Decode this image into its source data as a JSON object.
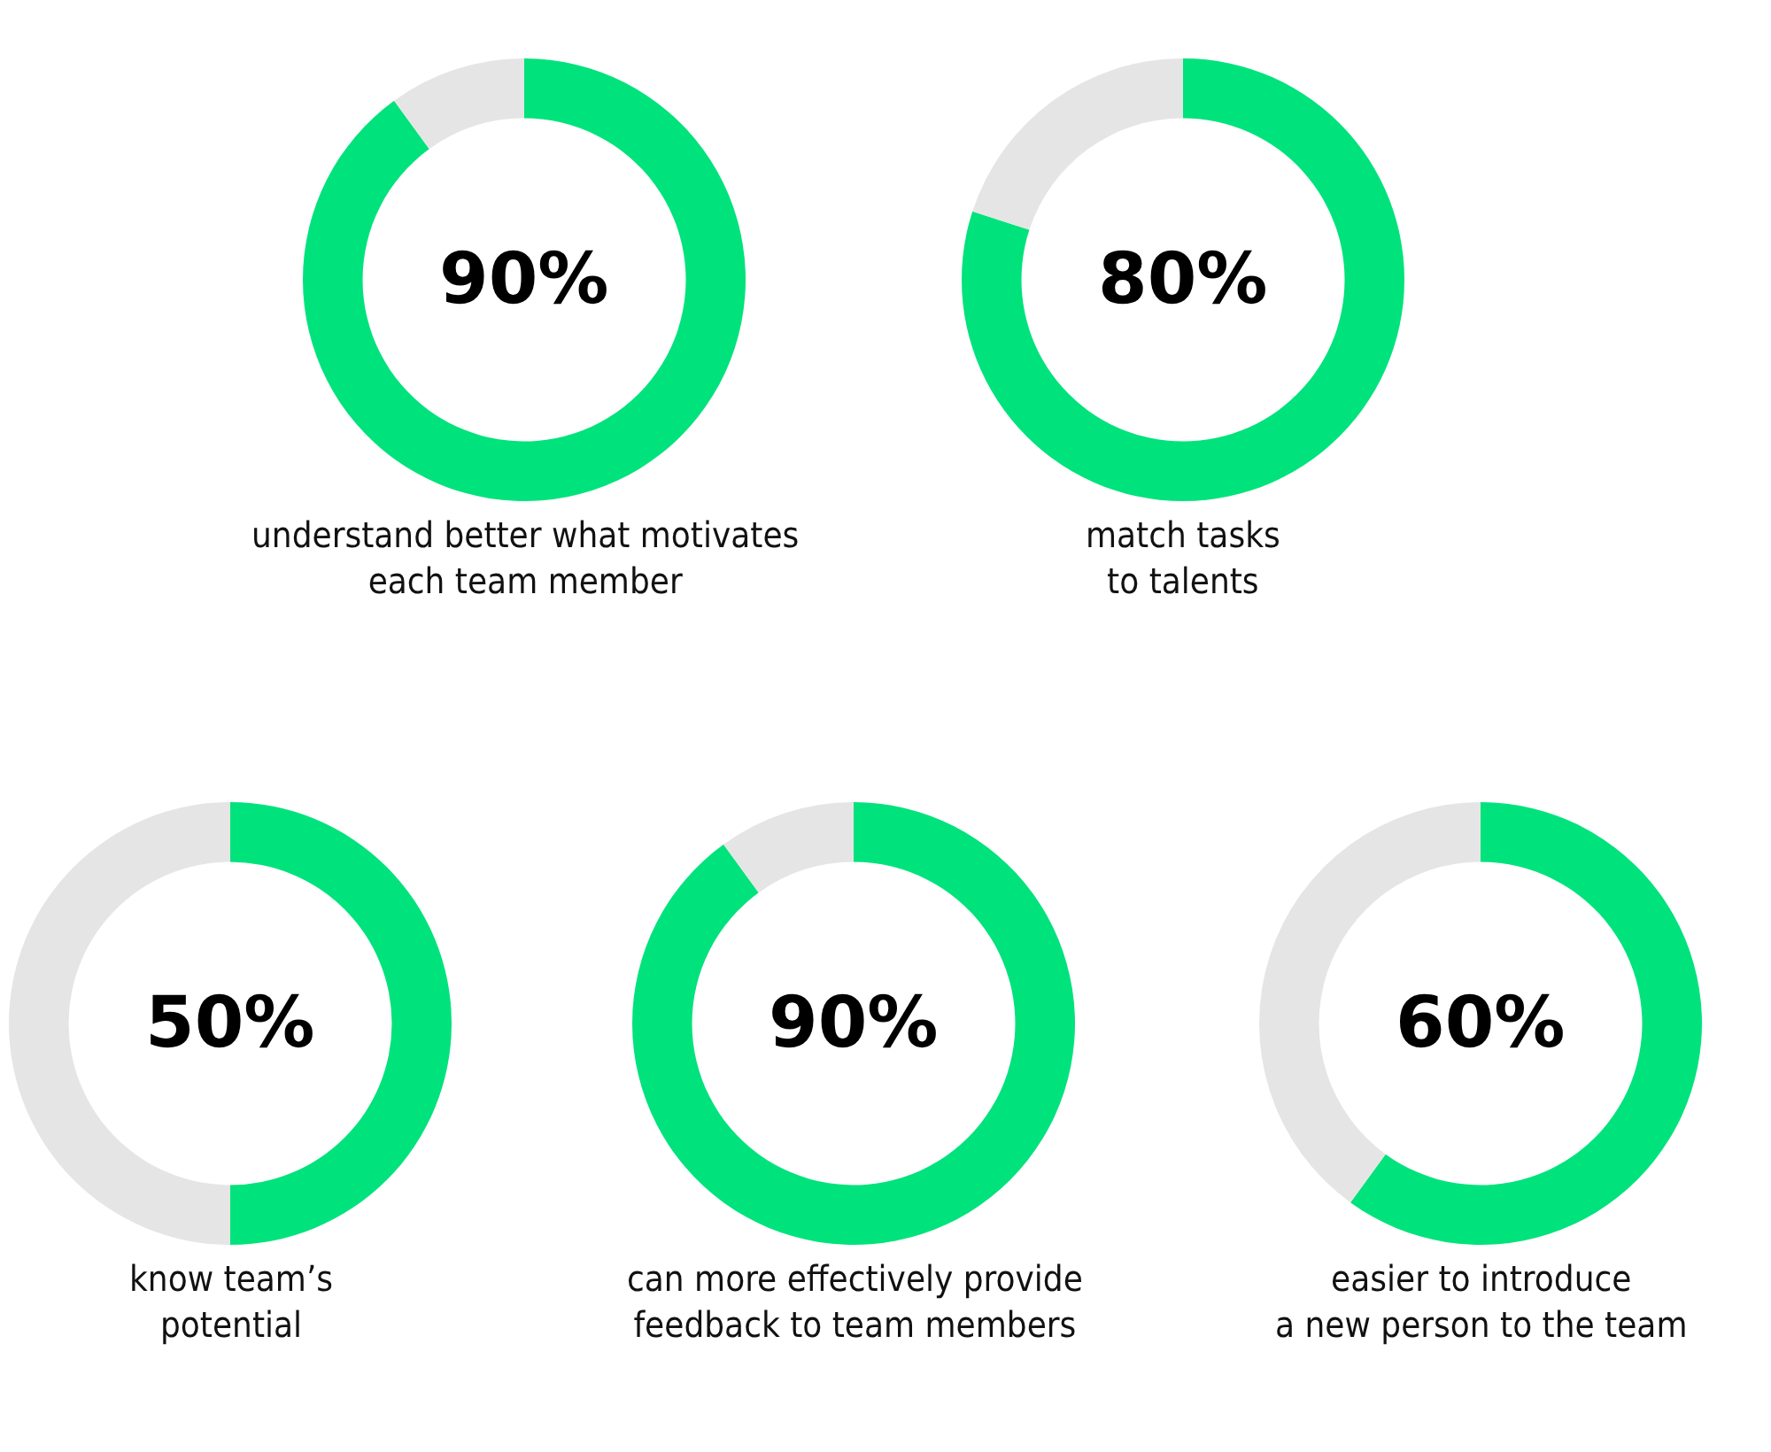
{
  "chart_data": [
    {
      "type": "donut",
      "title": "understand better what motivates\neach team member",
      "categories": [
        null,
        null
      ],
      "values": [
        90,
        10
      ],
      "colors": [
        "#00e27c",
        "#e5e5e5"
      ],
      "annotations": [
        "90%"
      ]
    },
    {
      "type": "donut",
      "title": "match tasks\nto talents",
      "categories": [
        null,
        null
      ],
      "values": [
        80,
        20
      ],
      "colors": [
        "#00e27c",
        "#e5e5e5"
      ],
      "annotations": [
        "80%"
      ]
    },
    {
      "type": "donut",
      "title": "know team’s\npotential",
      "categories": [
        null,
        null
      ],
      "values": [
        50,
        50
      ],
      "colors": [
        "#00e27c",
        "#e5e5e5"
      ],
      "annotations": [
        "50%"
      ]
    },
    {
      "type": "donut",
      "title": "can more effectively provide\nfeedback to team members",
      "categories": [
        null,
        null
      ],
      "values": [
        90,
        10
      ],
      "colors": [
        "#00e27c",
        "#e5e5e5"
      ],
      "annotations": [
        "90%"
      ]
    },
    {
      "type": "donut",
      "title": "easier to introduce\na new person to the team",
      "categories": [
        null,
        null
      ],
      "values": [
        60,
        40
      ],
      "colors": [
        "#00e27c",
        "#e5e5e5"
      ],
      "annotations": [
        "60%"
      ]
    }
  ]
}
